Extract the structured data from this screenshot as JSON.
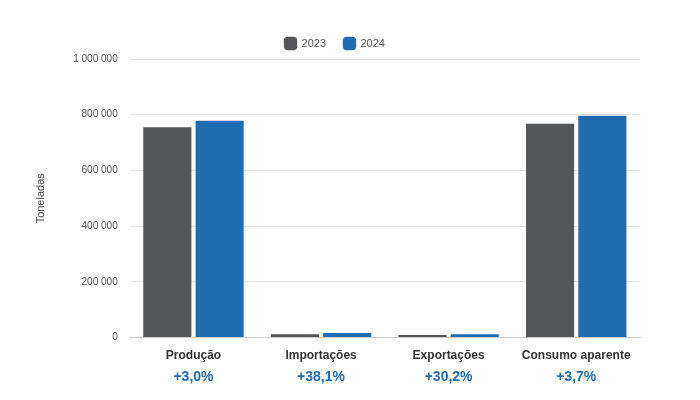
{
  "chart_data": {
    "type": "bar",
    "y_label": "Toneladas",
    "categories": [
      "Produção",
      "Importações",
      "Exportações",
      "Consumo aparente"
    ],
    "annotations": [
      "+3,0%",
      "+38,1%",
      "+30,2%",
      "+3,7%"
    ],
    "series": [
      {
        "name": "2023",
        "color": "#54565a",
        "values": [
          755000,
          12000,
          9000,
          768000
        ]
      },
      {
        "name": "2024",
        "color": "#1f6db0",
        "values": [
          778000,
          16600,
          11700,
          796000
        ]
      }
    ],
    "ylim": [
      0,
      1000000
    ],
    "yticks": [
      0,
      {
        "value": 200000,
        "label": "200 000"
      },
      {
        "value": 400000,
        "label": "400 000"
      },
      {
        "value": 600000,
        "label": "600 000"
      },
      {
        "value": 800000,
        "label": "800 000"
      },
      {
        "value": 1000000,
        "label": "1 000 000"
      }
    ],
    "grid": true,
    "legend": "top"
  }
}
